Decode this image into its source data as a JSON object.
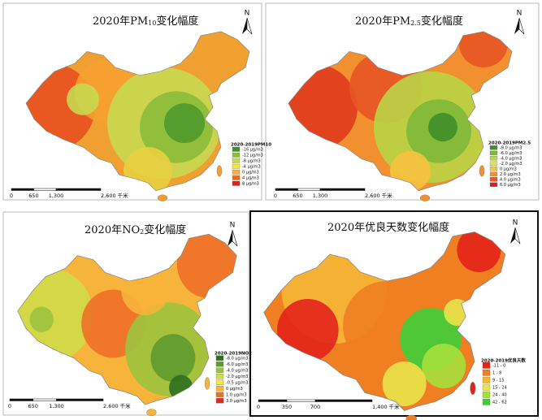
{
  "panels": [
    {
      "title_prefix": "2020年PM",
      "title_sub": "10",
      "title_suffix": "变化幅度",
      "north": "N",
      "scale": [
        "0",
        "650",
        "1,300",
        "2,600 千米"
      ],
      "legend_title": "2020-2019PM10",
      "legend": [
        "-16 μg/m3",
        "-12 μg/m3",
        "-8 μg/m3",
        "-4 μg/m3",
        "0 μg/m3",
        "4 μg/m3",
        "8 μg/m3"
      ],
      "legend_colors": [
        "#3f8f2a",
        "#8bbd3a",
        "#c7d94a",
        "#f1e34a",
        "#f7b13a",
        "#ee6a24",
        "#e0201a"
      ]
    },
    {
      "title_prefix": "2020年PM",
      "title_sub": "2.5",
      "title_suffix": "变化幅度",
      "north": "N",
      "scale": [
        "0",
        "650",
        "1,300",
        "2,600 千米"
      ],
      "legend_title": "2020-2019PM2.5",
      "legend": [
        "-9.0 μg/m3",
        "-6.0 μg/m3",
        "-4.0 μg/m3",
        "-2.0 μg/m3",
        "0 μg/m3",
        "2.0 μg/m3",
        "4.0 μg/m3",
        "6.0 μg/m3"
      ],
      "legend_colors": [
        "#3f8f2a",
        "#7fb838",
        "#b9d446",
        "#e8e24a",
        "#f7c23e",
        "#f29030",
        "#e85524",
        "#d81d1a"
      ]
    },
    {
      "title_prefix": "2020年NO",
      "title_sub": "2",
      "title_suffix": "变化幅度",
      "north": "N",
      "scale": [
        "0",
        "650",
        "1,300",
        "2,600 千米"
      ],
      "legend_title": "2020-2019NO2",
      "legend": [
        "-8.0 μg/m3",
        "-6.0 μg/m3",
        "-4.0 μg/m3",
        "-2.0 μg/m3",
        "-0.5 μg/m3",
        "0 μg/m3",
        "1.0 μg/m3",
        "3.0 μg/m3"
      ],
      "legend_colors": [
        "#2f6f1e",
        "#5f9a2e",
        "#9cc33e",
        "#cfdc48",
        "#f2e44a",
        "#f7b43a",
        "#ee7028",
        "#de2a1a"
      ]
    },
    {
      "title_prefix": "2020年优良天数变化幅度",
      "title_sub": "",
      "title_suffix": "",
      "north": "N",
      "scale": [
        "0",
        "350",
        "700",
        "1,400 千米"
      ],
      "legend_title": "2020-2019优良天数",
      "legend": [
        "-11 - 0",
        "1 - 8",
        "9 - 15",
        "15 - 24",
        "24 - 40",
        "42 - 62"
      ],
      "legend_colors": [
        "#e3231b",
        "#f07f22",
        "#f5b736",
        "#e8e64a",
        "#a6e03c",
        "#3ecf3a"
      ]
    }
  ]
}
